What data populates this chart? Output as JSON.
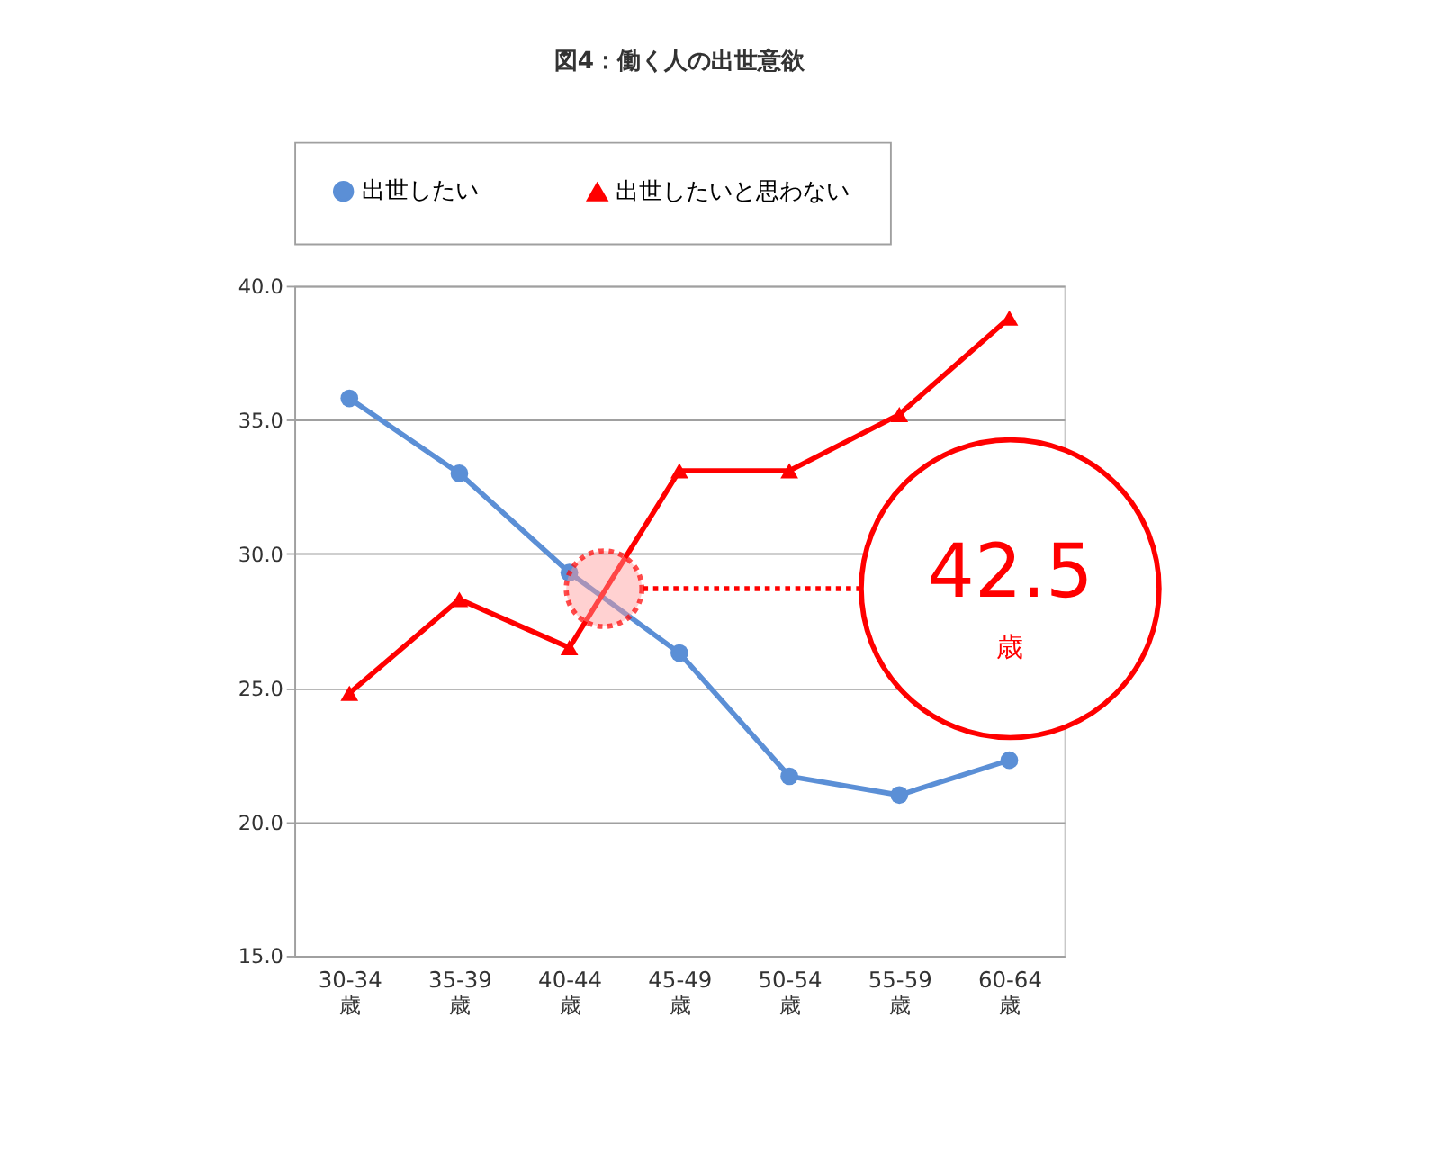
{
  "chart_data": {
    "type": "line",
    "title": "図4：働く人の出世意欲",
    "categories": [
      "30-34\n歳",
      "35-39\n歳",
      "40-44\n歳",
      "45-49\n歳",
      "50-54\n歳",
      "55-59\n歳",
      "60-64\n歳"
    ],
    "series": [
      {
        "name": "出世したい",
        "color": "#5b8fd6",
        "marker": "circle",
        "values": [
          35.8,
          33.0,
          29.3,
          26.3,
          21.7,
          21.0,
          22.3
        ]
      },
      {
        "name": "出世したいと思わない",
        "color": "#ff0000",
        "marker": "triangle",
        "values": [
          24.8,
          28.3,
          26.5,
          33.1,
          33.1,
          35.2,
          38.8
        ]
      }
    ],
    "ylim": [
      15,
      40
    ],
    "yticks": [
      {
        "value": 15,
        "label": "15.0"
      },
      {
        "value": 20,
        "label": "20.0"
      },
      {
        "value": 25,
        "label": "25.0"
      },
      {
        "value": 30,
        "label": "30.0"
      },
      {
        "value": 35,
        "label": "35.0"
      },
      {
        "value": 40,
        "label": "40.0"
      }
    ],
    "grid": "y",
    "legend": "top",
    "ref_lines": [
      {
        "axis": "y",
        "value": 28.7,
        "label": "42.5\n歳",
        "color": "#ff0000",
        "line_style": "dotted"
      }
    ]
  }
}
